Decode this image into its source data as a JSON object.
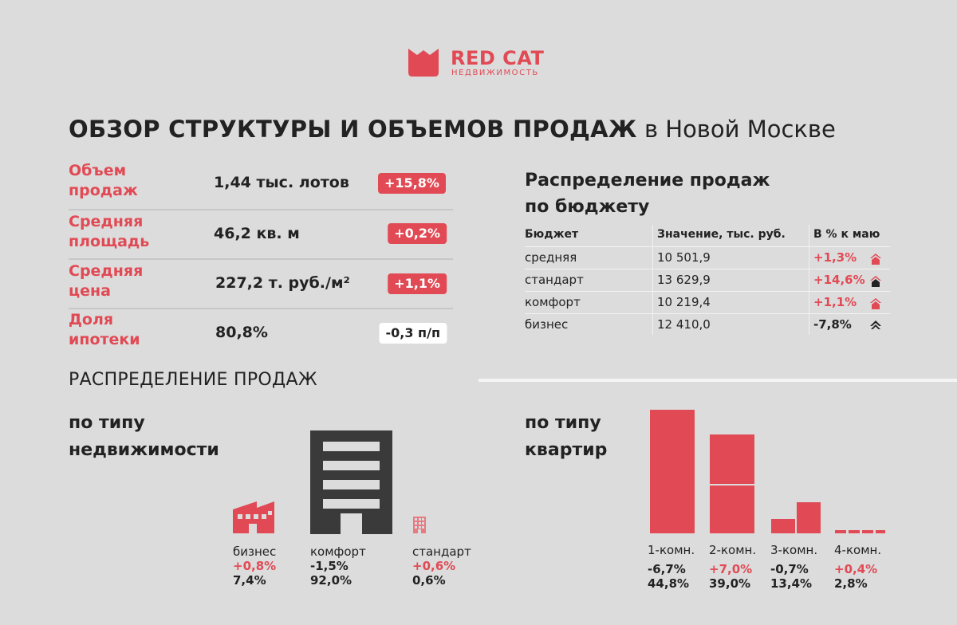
{
  "logo": {
    "name": "RED CAT",
    "subtitle": "НЕДВИЖИМОСТЬ"
  },
  "title": {
    "bold": "ОБЗОР СТРУКТУРЫ И ОБЪЕМОВ ПРОДАЖ",
    "regular": "в Новой Москве"
  },
  "metrics": [
    {
      "label": "Объем продаж",
      "value": "1,44 тыс. лотов",
      "change": "+15,8%",
      "badge": "red"
    },
    {
      "label": "Средняя площадь",
      "value": "46,2 кв. м",
      "change": "+0,2%",
      "badge": "red"
    },
    {
      "label": "Средняя цена",
      "value": "227,2 т. руб./м²",
      "change": "+1,1%",
      "badge": "red"
    },
    {
      "label": "Доля ипотеки",
      "value": "80,8%",
      "change": "-0,3 п/п",
      "badge": "white"
    }
  ],
  "budget": {
    "title_line1": "Распределение продаж",
    "title_line2": "по бюджету",
    "headers": [
      "Бюджет",
      "Значение, тыс. руб.",
      "В % к маю"
    ],
    "rows": [
      {
        "name": "средняя",
        "value": "10 501,9",
        "change": "+1,3%",
        "direction": "up"
      },
      {
        "name": "стандарт",
        "value": "13 629,9",
        "change": "+14,6%",
        "direction": "up"
      },
      {
        "name": "комфорт",
        "value": "10 219,4",
        "change": "+1,1%",
        "direction": "up"
      },
      {
        "name": "бизнес",
        "value": "12 410,0",
        "change": "-7,8%",
        "direction": "down"
      }
    ]
  },
  "distribution": {
    "title": "РАСПРЕДЕЛЕНИЕ ПРОДАЖ",
    "property": {
      "line1": "по типу",
      "line2": "недвижимости",
      "items": [
        {
          "name": "бизнес",
          "change": "+0,8%",
          "share": "7,4%"
        },
        {
          "name": "комфорт",
          "change": "-1,5%",
          "share": "92,0%"
        },
        {
          "name": "стандарт",
          "change": "+0,6%",
          "share": "0,6%"
        }
      ]
    },
    "apartments": {
      "line1": "по типу",
      "line2": "квартир",
      "items": [
        {
          "name": "1-комн.",
          "change": "-6,7%",
          "share": "44,8%",
          "value": 44.8
        },
        {
          "name": "2-комн.",
          "change": "+7,0%",
          "share": "39,0%",
          "value": 39.0
        },
        {
          "name": "3-комн.",
          "change": "-0,7%",
          "share": "13,4%",
          "value": 13.4
        },
        {
          "name": "4-комн.",
          "change": "+0,4%",
          "share": "2,8%",
          "value": 2.8
        }
      ]
    }
  },
  "colors": {
    "accent": "#e14a54",
    "background": "#dcdcdc",
    "dark": "#3a3a3a"
  }
}
